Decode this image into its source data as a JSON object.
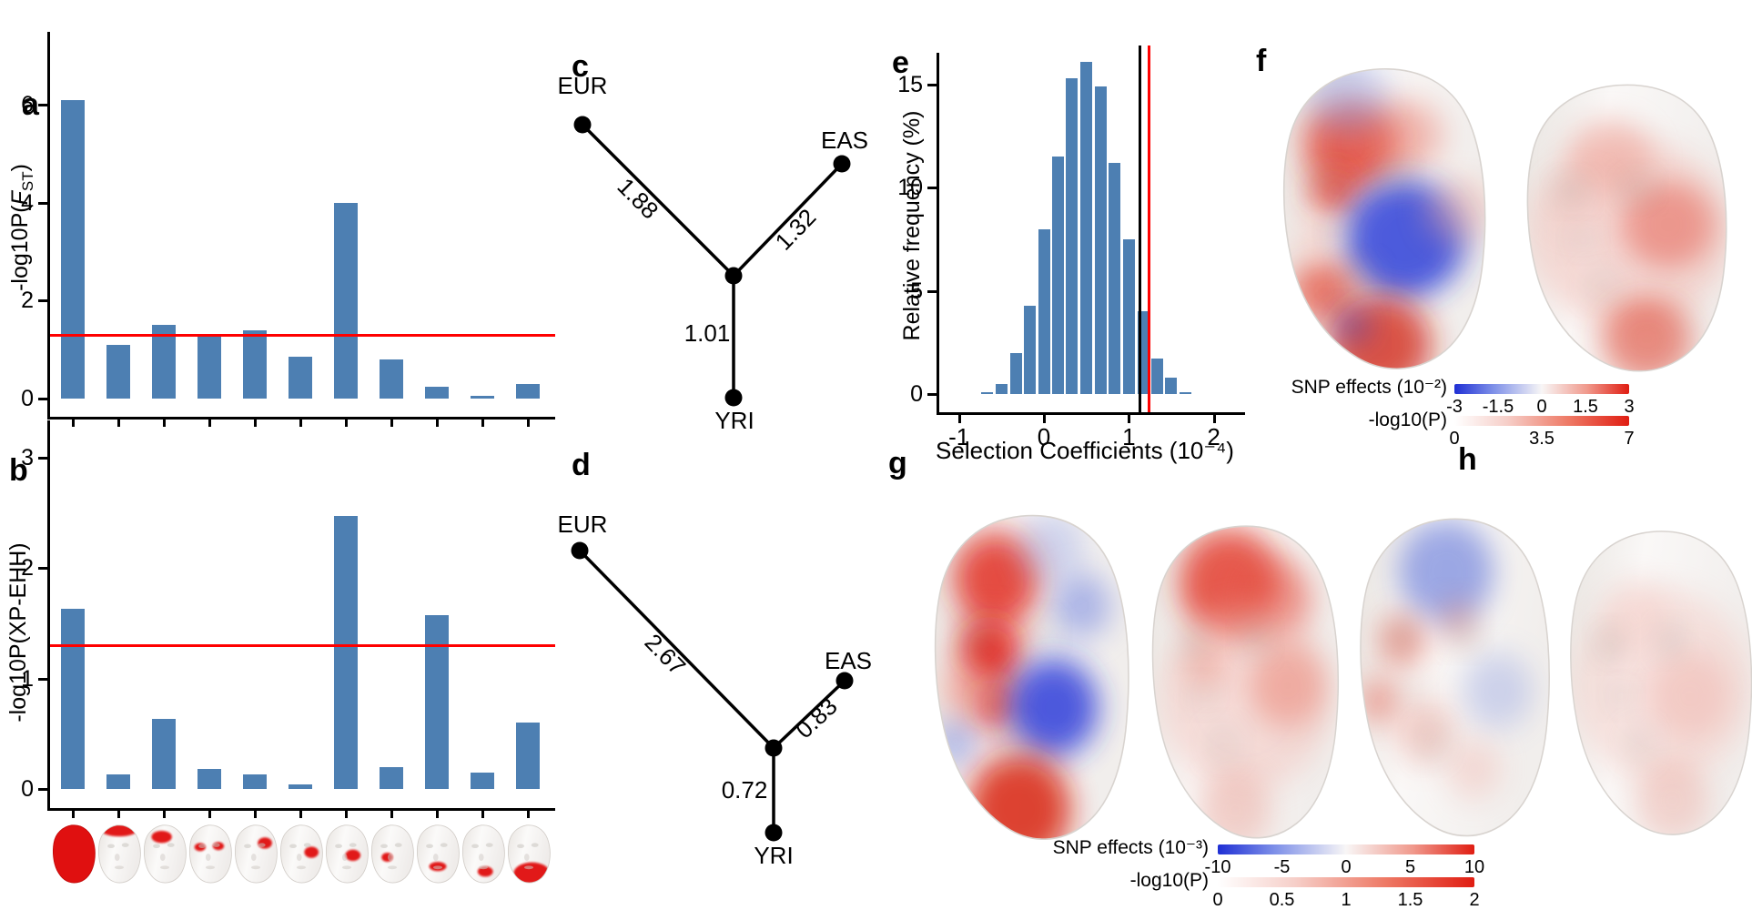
{
  "panel_labels": {
    "a": "a",
    "b": "b",
    "c": "c",
    "d": "d",
    "e": "e",
    "f": "f",
    "g": "g",
    "h": "h"
  },
  "axis_labels": {
    "a_pre": "-log10P(",
    "a_var": "F",
    "a_sub": "ST",
    "a_post": ")",
    "b": "-log10P(XP-EHH)",
    "e_y": "Relative frequency (%)",
    "e_x": "Selection Coefficients (10⁻⁴)"
  },
  "chart_data": [
    {
      "id": "a",
      "type": "bar",
      "ylabel": "-log10P(FST)",
      "categories": [
        "whole-face",
        "upper-head",
        "forehead",
        "eyes",
        "right-temple",
        "right-cheekbone",
        "cheek",
        "nose-side",
        "mouth",
        "chin",
        "lower-jaw"
      ],
      "values": [
        6.1,
        1.1,
        1.5,
        1.3,
        1.4,
        0.85,
        4.0,
        0.8,
        0.25,
        0.05,
        0.3
      ],
      "yticks": [
        0,
        2,
        4,
        6
      ],
      "ylim": [
        0,
        7.5
      ],
      "threshold": 1.3,
      "threshold_color": "#ff0000",
      "bar_color": "#4d7fb2",
      "grid": false
    },
    {
      "id": "b",
      "type": "bar",
      "ylabel": "-log10P(XP-EHH)",
      "categories": [
        "whole-face",
        "upper-head",
        "forehead",
        "eyes",
        "right-temple",
        "right-cheekbone",
        "cheek",
        "nose-side",
        "mouth",
        "chin",
        "lower-jaw"
      ],
      "values": [
        1.63,
        0.13,
        0.63,
        0.18,
        0.13,
        0.04,
        2.47,
        0.2,
        1.57,
        0.15,
        0.6
      ],
      "yticks": [
        0,
        1,
        2,
        3
      ],
      "ylim": [
        0,
        3.3
      ],
      "threshold": 1.3,
      "threshold_color": "#ff0000",
      "bar_color": "#4d7fb2",
      "grid": false
    },
    {
      "id": "c",
      "type": "tree",
      "leaves": [
        "EUR",
        "EAS",
        "YRI"
      ],
      "branch_lengths": {
        "EUR": "1.88",
        "EAS": "1.32",
        "YRI": "1.01"
      }
    },
    {
      "id": "d",
      "type": "tree",
      "leaves": [
        "EUR",
        "EAS",
        "YRI"
      ],
      "branch_lengths": {
        "EUR": "2.67",
        "EAS": "0.83",
        "YRI": "0.72"
      }
    },
    {
      "id": "e",
      "type": "histogram",
      "title": "",
      "xlabel": "Selection Coefficients (10⁻⁴)",
      "ylabel": "Relative frequency (%)",
      "bin_centers": [
        -0.67,
        -0.5,
        -0.33,
        -0.17,
        0,
        0.17,
        0.33,
        0.5,
        0.67,
        0.83,
        1.0,
        1.17,
        1.33,
        1.5,
        1.67
      ],
      "values": [
        0.1,
        0.5,
        2.0,
        4.3,
        8.0,
        11.5,
        15.3,
        16.1,
        14.9,
        11.2,
        7.5,
        4.0,
        1.7,
        0.8,
        0.1
      ],
      "xticks": [
        -1,
        0,
        1,
        2
      ],
      "yticks": [
        0,
        5,
        10,
        15
      ],
      "xlim": [
        -1.3,
        2.4
      ],
      "ylim": [
        0,
        17
      ],
      "bar_color": "#4d7fb2",
      "grid": false,
      "vlines": [
        {
          "x": 1.13,
          "color": "#000000"
        },
        {
          "x": 1.24,
          "color": "#ff0000"
        }
      ]
    }
  ],
  "colorbars": {
    "f_effects": {
      "label": "SNP effects (10⁻²)",
      "ticks": [
        "-3",
        "-1.5",
        "0",
        "1.5",
        "3"
      ],
      "type": "diverging"
    },
    "f_p": {
      "label": "-log10(P)",
      "ticks": [
        "0",
        "3.5",
        "7"
      ],
      "type": "sequential"
    },
    "gh_effects": {
      "label": "SNP effects (10⁻³)",
      "ticks": [
        "-10",
        "-5",
        "0",
        "5",
        "10"
      ],
      "type": "diverging"
    },
    "gh_p": {
      "label": "-log10(P)",
      "ticks": [
        "0",
        "0.5",
        "1",
        "1.5",
        "2"
      ],
      "type": "sequential"
    }
  },
  "faces_row": [
    {
      "region": "whole-face",
      "full": true,
      "patches": []
    },
    {
      "region": "upper-head",
      "full": false,
      "patches": [
        [
          50,
          14,
          36,
          13
        ]
      ]
    },
    {
      "region": "forehead",
      "full": false,
      "patches": [
        [
          44,
          28,
          20,
          12
        ]
      ]
    },
    {
      "region": "eyes",
      "full": false,
      "patches": [
        [
          30,
          48,
          11,
          8
        ],
        [
          66,
          46,
          11,
          8
        ]
      ]
    },
    {
      "region": "right-temple",
      "full": false,
      "patches": [
        [
          68,
          40,
          14,
          11
        ]
      ]
    },
    {
      "region": "right-cheekbone",
      "full": false,
      "patches": [
        [
          70,
          58,
          14,
          11
        ]
      ]
    },
    {
      "region": "cheek",
      "full": false,
      "patches": [
        [
          62,
          64,
          15,
          11
        ]
      ]
    },
    {
      "region": "nose-side",
      "full": false,
      "patches": [
        [
          40,
          68,
          11,
          9
        ]
      ]
    },
    {
      "region": "mouth",
      "full": false,
      "patches": [
        [
          50,
          86,
          17,
          9
        ]
      ]
    },
    {
      "region": "chin",
      "full": false,
      "patches": [
        [
          54,
          96,
          15,
          10
        ]
      ]
    },
    {
      "region": "lower-jaw",
      "full": false,
      "patches": [
        [
          56,
          100,
          36,
          22
        ]
      ]
    }
  ],
  "heatmap_faces": {
    "f": [
      {
        "name": "snp-effects-face",
        "spots": [
          [
            95,
            90,
            48,
            "#e03020",
            0.75
          ],
          [
            150,
            80,
            38,
            "#e87060",
            0.45
          ],
          [
            78,
            140,
            26,
            "#df2b1d",
            0.65
          ],
          [
            150,
            190,
            62,
            "#2336d6",
            0.8
          ],
          [
            92,
            38,
            40,
            "#8e9ce0",
            0.45
          ],
          [
            68,
            245,
            34,
            "#e04431",
            0.7
          ],
          [
            125,
            302,
            52,
            "#cf1d0e",
            0.75
          ],
          [
            97,
            282,
            18,
            "#3a4ad0",
            0.5
          ],
          [
            205,
            160,
            35,
            "#eda396",
            0.4
          ],
          [
            60,
            190,
            22,
            "#f0b9b0",
            0.5
          ]
        ]
      },
      {
        "name": "pvalue-face",
        "spots": [
          [
            132,
            175,
            105,
            "#f2b7af",
            0.45
          ],
          [
            172,
            165,
            48,
            "#e4584a",
            0.5
          ],
          [
            112,
            92,
            44,
            "#ec9a8e",
            0.5
          ],
          [
            150,
            292,
            46,
            "#dd3a28",
            0.55
          ],
          [
            80,
            140,
            30,
            "#f3c8c2",
            0.5
          ]
        ]
      }
    ],
    "g": [
      {
        "name": "snp-effects-face",
        "spots": [
          [
            92,
            72,
            46,
            "#e02313",
            0.8
          ],
          [
            85,
            142,
            34,
            "#e01408",
            0.85
          ],
          [
            90,
            195,
            26,
            "#e0190c",
            0.7
          ],
          [
            152,
            198,
            48,
            "#2133d8",
            0.8
          ],
          [
            182,
            98,
            32,
            "#7283de",
            0.55
          ],
          [
            48,
            232,
            24,
            "#5e6fd8",
            0.45
          ],
          [
            116,
            298,
            55,
            "#d61505",
            0.8
          ],
          [
            55,
            182,
            24,
            "#ec8575",
            0.5
          ],
          [
            150,
            40,
            35,
            "#93a0e2",
            0.4
          ]
        ]
      },
      {
        "name": "pvalue-face",
        "spots": [
          [
            112,
            68,
            56,
            "#e02616",
            0.75
          ],
          [
            162,
            84,
            42,
            "#e65546",
            0.55
          ],
          [
            130,
            185,
            95,
            "#f2b6ae",
            0.4
          ],
          [
            176,
            172,
            42,
            "#ea7463",
            0.45
          ],
          [
            86,
            152,
            22,
            "#ed8878",
            0.45
          ],
          [
            118,
            300,
            40,
            "#e8968a",
            0.4
          ]
        ]
      }
    ],
    "h": [
      {
        "name": "snp-effects-face",
        "spots": [
          [
            120,
            62,
            52,
            "#5066d6",
            0.55
          ],
          [
            176,
            182,
            38,
            "#93a2e2",
            0.4
          ],
          [
            72,
            132,
            26,
            "#e46352",
            0.55
          ],
          [
            47,
            192,
            23,
            "#e05a48",
            0.5
          ],
          [
            96,
            222,
            32,
            "#eda196",
            0.45
          ],
          [
            132,
            112,
            20,
            "#e3685a",
            0.35
          ],
          [
            150,
            260,
            30,
            "#f0b4ab",
            0.4
          ]
        ]
      },
      {
        "name": "pvalue-face",
        "spots": [
          [
            130,
            172,
            102,
            "#f4c4bd",
            0.4
          ],
          [
            162,
            182,
            46,
            "#efaca2",
            0.4
          ],
          [
            142,
            292,
            42,
            "#e9988c",
            0.35
          ],
          [
            100,
            100,
            40,
            "#f3cac4",
            0.4
          ]
        ]
      }
    ]
  }
}
